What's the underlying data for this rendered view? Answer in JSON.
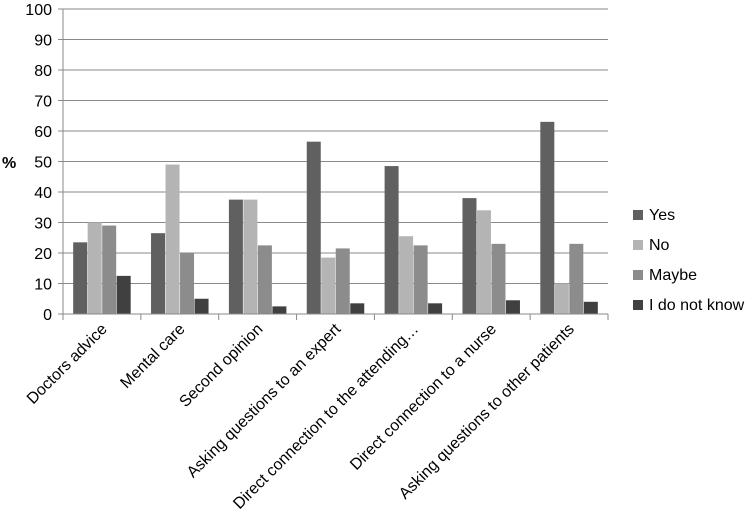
{
  "chart_data": {
    "type": "bar",
    "title": "",
    "xlabel": "",
    "ylabel": "%",
    "ylim": [
      0,
      100
    ],
    "yticks": [
      "0",
      "10",
      "20",
      "30",
      "40",
      "50",
      "60",
      "70",
      "80",
      "90",
      "100"
    ],
    "grid": true,
    "legend_position": "right",
    "categories": [
      "Doctors advice",
      "Mental care",
      "Second opinion",
      "Asking questions to an expert",
      "Direct connection to the attending…",
      "Direct connection to a nurse",
      "Asking questions to other patients"
    ],
    "series": [
      {
        "name": "Yes",
        "color": "#606060",
        "values": [
          23.5,
          26.5,
          37.5,
          56.5,
          48.5,
          38.0,
          63.0
        ]
      },
      {
        "name": "No",
        "color": "#b4b4b4",
        "values": [
          30.0,
          49.0,
          37.5,
          18.5,
          25.5,
          34.0,
          10.0
        ]
      },
      {
        "name": "Maybe",
        "color": "#8c8c8c",
        "values": [
          29.0,
          20.0,
          22.5,
          21.5,
          22.5,
          23.0,
          23.0
        ]
      },
      {
        "name": "I do not know",
        "color": "#404040",
        "values": [
          12.5,
          5.0,
          2.5,
          3.5,
          3.5,
          4.5,
          4.0
        ]
      }
    ]
  }
}
